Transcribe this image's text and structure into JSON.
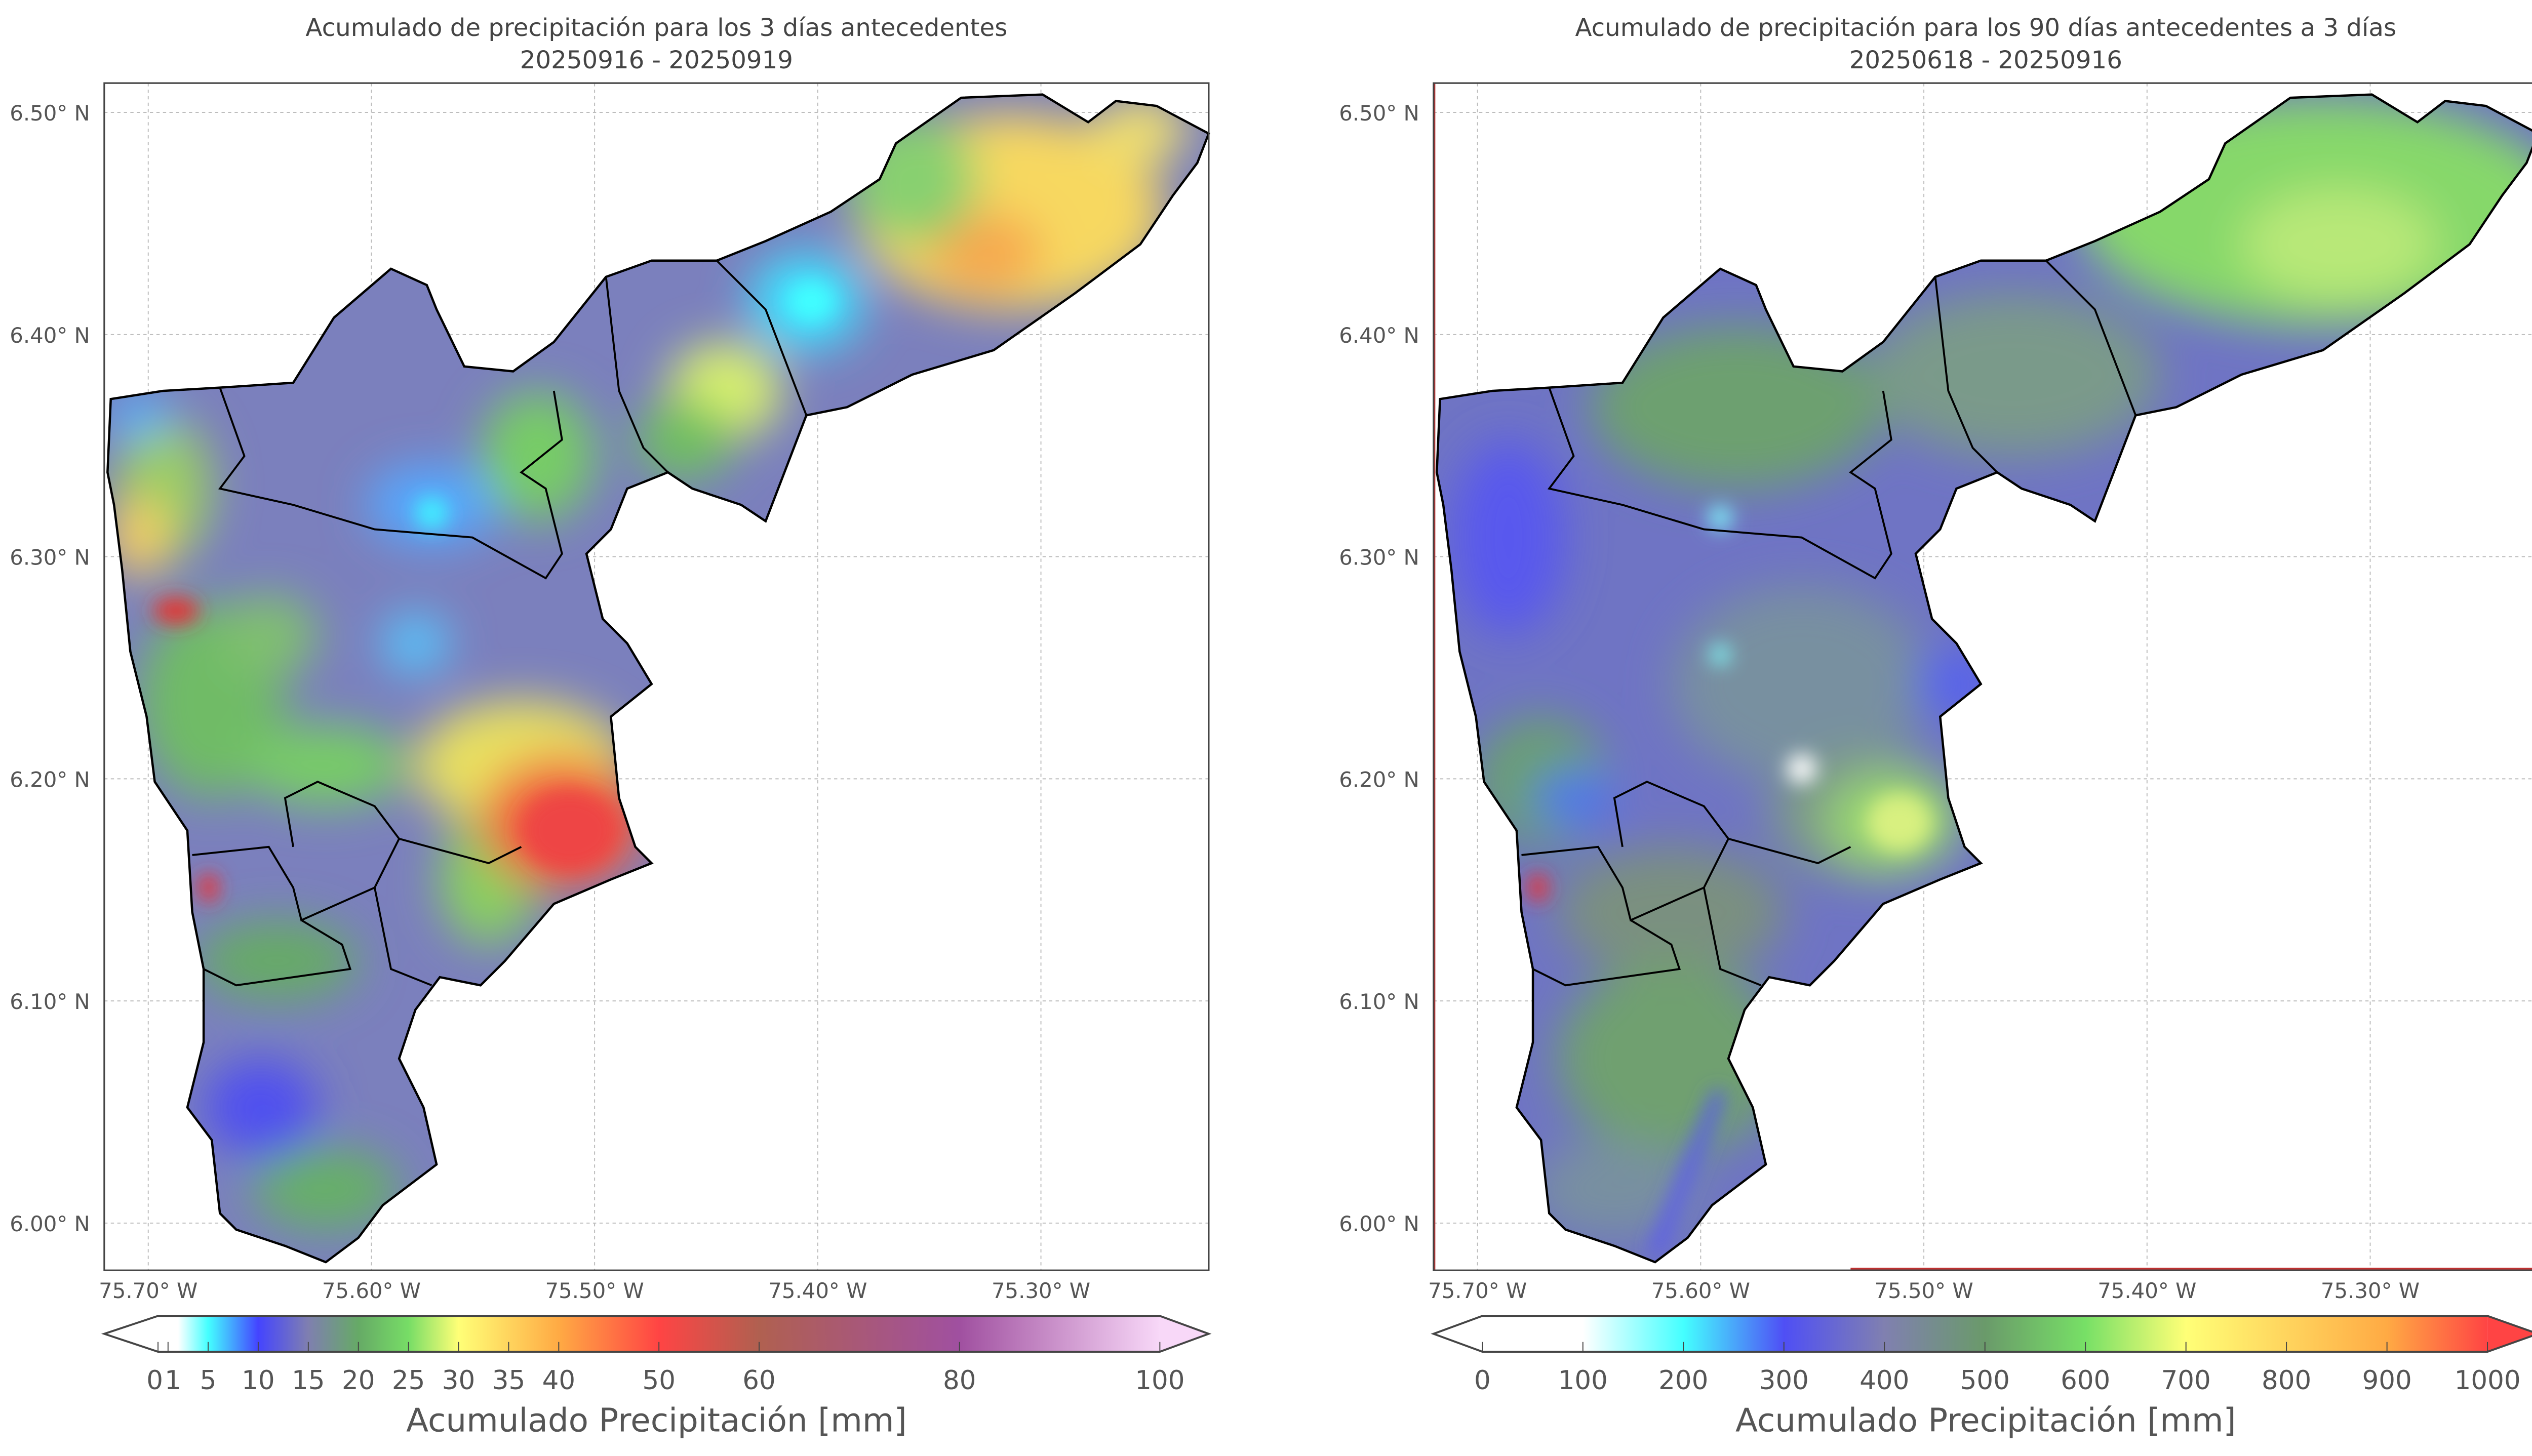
{
  "panels": [
    {
      "title_line1": "Acumulado de precipitación para los 3 días antecedentes",
      "title_line2": "20250916 - 20250919",
      "colorbar": {
        "label": "Acumulado Precipitación [mm]",
        "ticks": [
          "0",
          "1",
          "5",
          "10",
          "15",
          "20",
          "25",
          "30",
          "35",
          "40",
          "50",
          "60",
          "80",
          "100"
        ],
        "tick_values": [
          0,
          1,
          5,
          10,
          15,
          20,
          25,
          30,
          35,
          40,
          50,
          60,
          80,
          100
        ],
        "range": [
          0,
          100
        ],
        "stops": [
          [
            0,
            "#ffffff"
          ],
          [
            2,
            "#ffffff"
          ],
          [
            5,
            "#44ffff"
          ],
          [
            10,
            "#4444ff"
          ],
          [
            15,
            "#7f7fb0"
          ],
          [
            20,
            "#66aa66"
          ],
          [
            25,
            "#77dd66"
          ],
          [
            30,
            "#ffff77"
          ],
          [
            40,
            "#ffaa44"
          ],
          [
            50,
            "#ff4444"
          ],
          [
            60,
            "#b06050"
          ],
          [
            80,
            "#a050a0"
          ],
          [
            100,
            "#f8d8f8"
          ]
        ]
      }
    },
    {
      "title_line1": "Acumulado de precipitación para los 90 días antecedentes a 3 días",
      "title_line2": "20250618 - 20250916",
      "colorbar": {
        "label": "Acumulado Precipitación [mm]",
        "ticks": [
          "0",
          "100",
          "200",
          "300",
          "400",
          "500",
          "600",
          "700",
          "800",
          "900",
          "1000"
        ],
        "tick_values": [
          0,
          100,
          200,
          300,
          400,
          500,
          600,
          700,
          800,
          900,
          1000
        ],
        "range": [
          0,
          1000
        ],
        "stops": [
          [
            0,
            "#ffffff"
          ],
          [
            100,
            "#ffffff"
          ],
          [
            200,
            "#44ffff"
          ],
          [
            300,
            "#4f4ff5"
          ],
          [
            400,
            "#8080b0"
          ],
          [
            500,
            "#6a9a6a"
          ],
          [
            600,
            "#77e066"
          ],
          [
            700,
            "#ffff77"
          ],
          [
            900,
            "#ffaa44"
          ],
          [
            1000,
            "#ff4444"
          ]
        ]
      }
    }
  ],
  "axes": {
    "lat_ticks": [
      "6.50° N",
      "6.40° N",
      "6.30° N",
      "6.20° N",
      "6.10° N",
      "6.00° N"
    ],
    "lon_ticks": [
      "75.70° W",
      "75.60° W",
      "75.50° W",
      "75.40° W",
      "75.30° W"
    ]
  }
}
